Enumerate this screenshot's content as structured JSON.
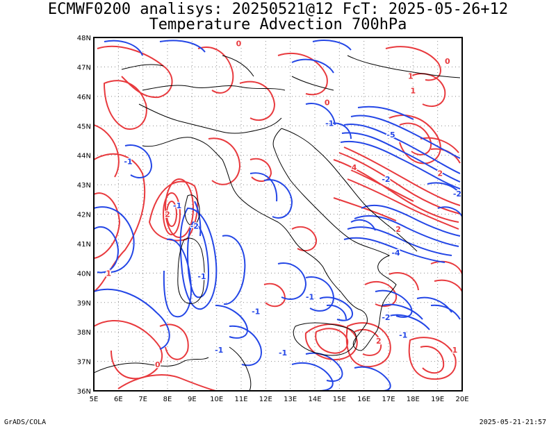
{
  "header": {
    "line1": "ECMWF0200 analisys: 20250521@12 FcT: 2025-05-26+12",
    "line2": "Temperature Advection 700hPa"
  },
  "footer": {
    "credit": "GrADS/COLA",
    "timestamp": "2025-05-21-21:57"
  },
  "map": {
    "lon_labels": [
      "5E",
      "6E",
      "7E",
      "8E",
      "9E",
      "10E",
      "11E",
      "12E",
      "13E",
      "14E",
      "15E",
      "16E",
      "17E",
      "18E",
      "19E",
      "20E"
    ],
    "lat_labels": [
      "48N",
      "47N",
      "46N",
      "45N",
      "44N",
      "43N",
      "42N",
      "41N",
      "40N",
      "39N",
      "38N",
      "37N",
      "36N"
    ],
    "lon_range": [
      5,
      20
    ],
    "lat_range": [
      36,
      48
    ],
    "grid": "dotted",
    "colors": {
      "warm_advection": "#e8393d",
      "cold_advection": "#2346e6",
      "coastline": "#000000",
      "frame": "#000000"
    },
    "contour_labels": [
      {
        "text": "-1",
        "lon": 8.4,
        "lat": 42.2,
        "kind": "cold"
      },
      {
        "text": "2",
        "lon": 8.0,
        "lat": 41.9,
        "kind": "warm"
      },
      {
        "text": "-2",
        "lon": 9.1,
        "lat": 41.5,
        "kind": "cold"
      },
      {
        "text": "-1",
        "lon": 9.4,
        "lat": 39.8,
        "kind": "cold"
      },
      {
        "text": "1",
        "lon": 5.6,
        "lat": 39.9,
        "kind": "warm"
      },
      {
        "text": "-1",
        "lon": 11.6,
        "lat": 38.6,
        "kind": "cold"
      },
      {
        "text": "-1",
        "lon": 13.8,
        "lat": 39.1,
        "kind": "cold"
      },
      {
        "text": "-1",
        "lon": 12.7,
        "lat": 37.2,
        "kind": "cold"
      },
      {
        "text": "0",
        "lon": 7.6,
        "lat": 36.8,
        "kind": "warm"
      },
      {
        "text": "2",
        "lon": 16.6,
        "lat": 37.6,
        "kind": "warm"
      },
      {
        "text": "-2",
        "lon": 16.9,
        "lat": 38.4,
        "kind": "cold"
      },
      {
        "text": "-4",
        "lon": 17.3,
        "lat": 40.6,
        "kind": "cold"
      },
      {
        "text": "2",
        "lon": 17.4,
        "lat": 41.4,
        "kind": "warm"
      },
      {
        "text": "4",
        "lon": 15.6,
        "lat": 43.5,
        "kind": "warm"
      },
      {
        "text": "-2",
        "lon": 16.9,
        "lat": 43.1,
        "kind": "cold"
      },
      {
        "text": "-5",
        "lon": 17.1,
        "lat": 44.6,
        "kind": "cold"
      },
      {
        "text": "2",
        "lon": 19.1,
        "lat": 43.3,
        "kind": "warm"
      },
      {
        "text": "-2",
        "lon": 19.8,
        "lat": 42.6,
        "kind": "cold"
      },
      {
        "text": "0",
        "lon": 14.5,
        "lat": 45.7,
        "kind": "warm"
      },
      {
        "text": "-1",
        "lon": 14.6,
        "lat": 45.0,
        "kind": "cold"
      },
      {
        "text": "1",
        "lon": 18.0,
        "lat": 46.1,
        "kind": "warm"
      },
      {
        "text": "1",
        "lon": 17.9,
        "lat": 46.6,
        "kind": "warm"
      },
      {
        "text": "0",
        "lon": 19.4,
        "lat": 47.1,
        "kind": "warm"
      },
      {
        "text": "-1",
        "lon": 6.4,
        "lat": 43.7,
        "kind": "cold"
      },
      {
        "text": "0",
        "lon": 10.9,
        "lat": 47.7,
        "kind": "warm"
      },
      {
        "text": "1",
        "lon": 19.7,
        "lat": 37.3,
        "kind": "warm"
      },
      {
        "text": "-1",
        "lon": 17.6,
        "lat": 37.8,
        "kind": "cold"
      },
      {
        "text": "-1",
        "lon": 10.1,
        "lat": 37.3,
        "kind": "cold"
      }
    ]
  }
}
